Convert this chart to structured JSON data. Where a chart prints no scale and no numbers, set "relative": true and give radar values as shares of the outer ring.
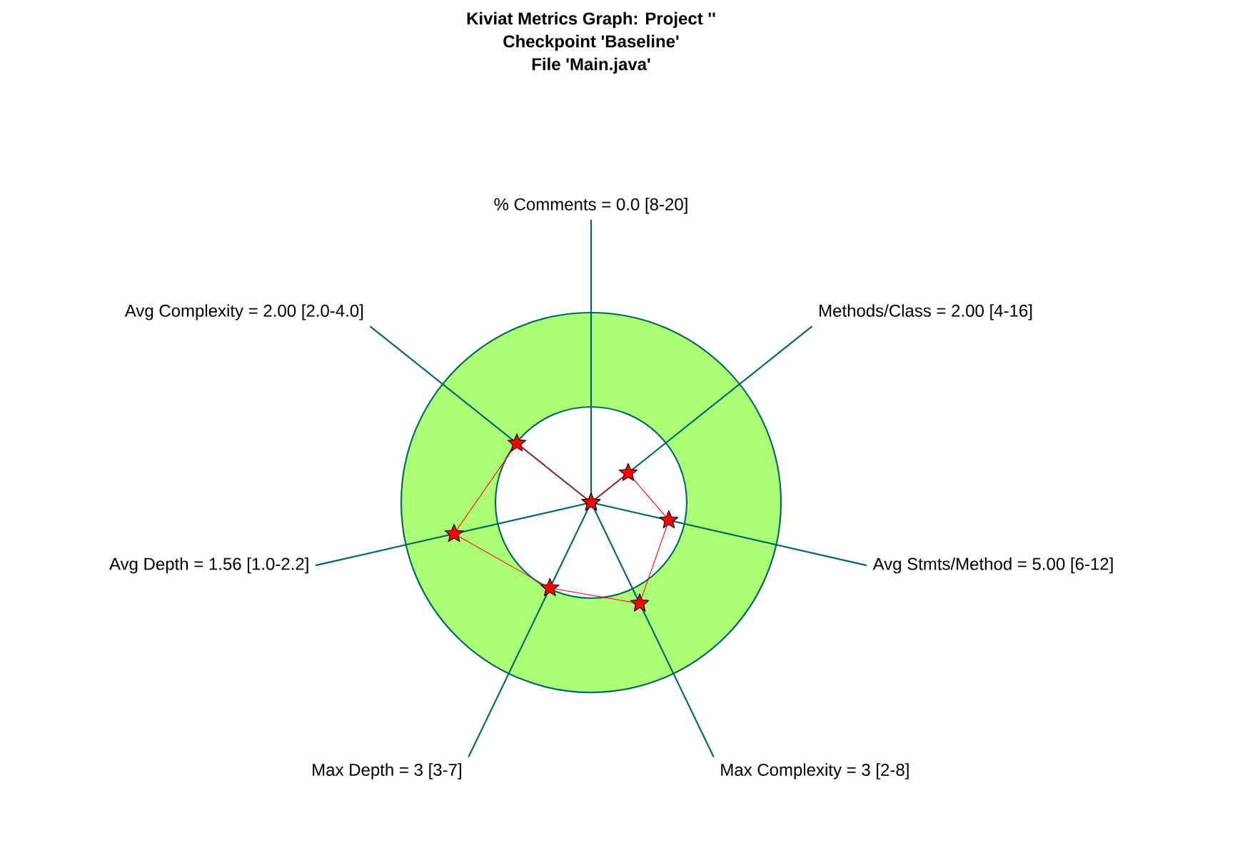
{
  "chart_data": {
    "type": "radar",
    "title": "Kiviat Metrics Graph: Project ''",
    "subtitle": "Checkpoint 'Baseline'",
    "annotations": [
      "File 'Main.java'"
    ],
    "categories": [
      "% Comments = 0.0 [8-20]",
      "Methods/Class = 2.00 [4-16]",
      "Avg Stmts/Method = 5.00 [6-12]",
      "Max Complexity = 3 [2-8]",
      "Max Depth = 3 [3-7]",
      "Avg Depth = 1.56 [1.0-2.2]",
      "Avg Complexity = 2.00 [2.0-4.0]"
    ],
    "relative": true,
    "values": [
      0,
      0.25,
      0.42,
      0.59,
      0.5,
      0.74,
      0.5
    ],
    "color": "#ff0000",
    "marker": "star"
  }
}
